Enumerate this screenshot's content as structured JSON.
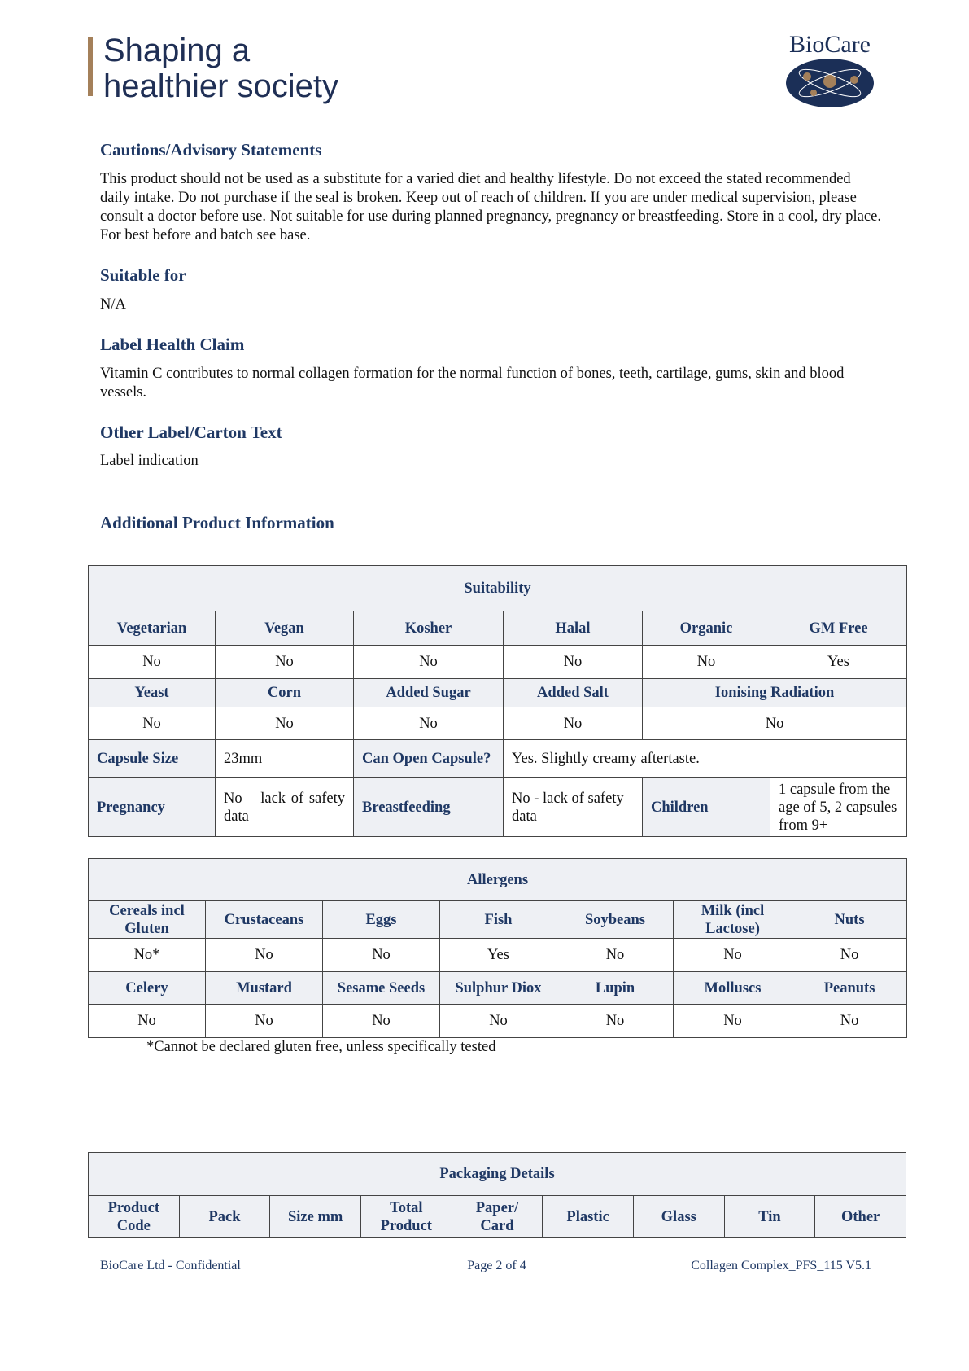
{
  "header": {
    "slogan_line1": "Shaping a",
    "slogan_line2": "healthier society",
    "logo_text": "BioCare"
  },
  "sections": [
    {
      "heading": "Cautions/Advisory Statements",
      "body": "This product should not be used as a substitute for a varied diet and healthy lifestyle. Do not exceed the stated recommended daily intake. Do not purchase if the seal is broken. Keep out of reach of children. If you are under medical supervision, please consult a doctor before use. Not suitable for use during planned pregnancy, pregnancy or breastfeeding. Store in a cool, dry place. For best before and batch see base."
    },
    {
      "heading": "Suitable for",
      "body": "N/A"
    },
    {
      "heading": "Label Health Claim",
      "body": "Vitamin C contributes to normal collagen formation for the normal function of bones, teeth, cartilage, gums, skin and blood vessels."
    },
    {
      "heading": "Other Label/Carton Text",
      "body": "Label indication"
    }
  ],
  "additional_heading": "Additional Product Information",
  "suitability": {
    "title": "Suitability",
    "row1_headers": [
      "Vegetarian",
      "Vegan",
      "Kosher",
      "Halal",
      "Organic",
      "GM Free"
    ],
    "row1_values": [
      "No",
      "No",
      "No",
      "No",
      "No",
      "Yes"
    ],
    "row2_headers": [
      "Yeast",
      "Corn",
      "Added Sugar",
      "Added Salt",
      "Ionising Radiation"
    ],
    "row2_values": [
      "No",
      "No",
      "No",
      "No",
      "No"
    ],
    "capsule_size_label": "Capsule Size",
    "capsule_size": "23mm",
    "can_open_label": "Can Open Capsule?",
    "can_open": "Yes. Slightly creamy aftertaste.",
    "pregnancy_label": "Pregnancy",
    "pregnancy": "No – lack of safety data",
    "breastfeeding_label": "Breastfeeding",
    "breastfeeding": "No - lack of safety data",
    "children_label": "Children",
    "children": "1 capsule from the age of 5, 2 capsules from 9+"
  },
  "allergens": {
    "title": "Allergens",
    "row1_headers": [
      "Cereals incl Gluten",
      "Crustaceans",
      "Eggs",
      "Fish",
      "Soybeans",
      "Milk (incl Lactose)",
      "Nuts"
    ],
    "row1_values": [
      "No*",
      "No",
      "No",
      "Yes",
      "No",
      "No",
      "No"
    ],
    "row2_headers": [
      "Celery",
      "Mustard",
      "Sesame Seeds",
      "Sulphur Diox",
      "Lupin",
      "Molluscs",
      "Peanuts"
    ],
    "row2_values": [
      "No",
      "No",
      "No",
      "No",
      "No",
      "No",
      "No"
    ],
    "footnote": "*Cannot be declared gluten free, unless specifically tested"
  },
  "packaging": {
    "title": "Packaging Details",
    "headers": [
      "Product Code",
      "Pack",
      "Size mm",
      "Total Product",
      "Paper/ Card",
      "Plastic",
      "Glass",
      "Tin",
      "Other"
    ]
  },
  "footer": {
    "left": "BioCare Ltd - Confidential",
    "center": "Page 2 of 4",
    "right": "Collagen Complex_PFS_115 V5.1"
  },
  "colors": {
    "heading": "#1f3864",
    "header_fill": "#eef0f4",
    "accent_bar": "#a4805a",
    "logo_navy": "#1b2f57"
  }
}
